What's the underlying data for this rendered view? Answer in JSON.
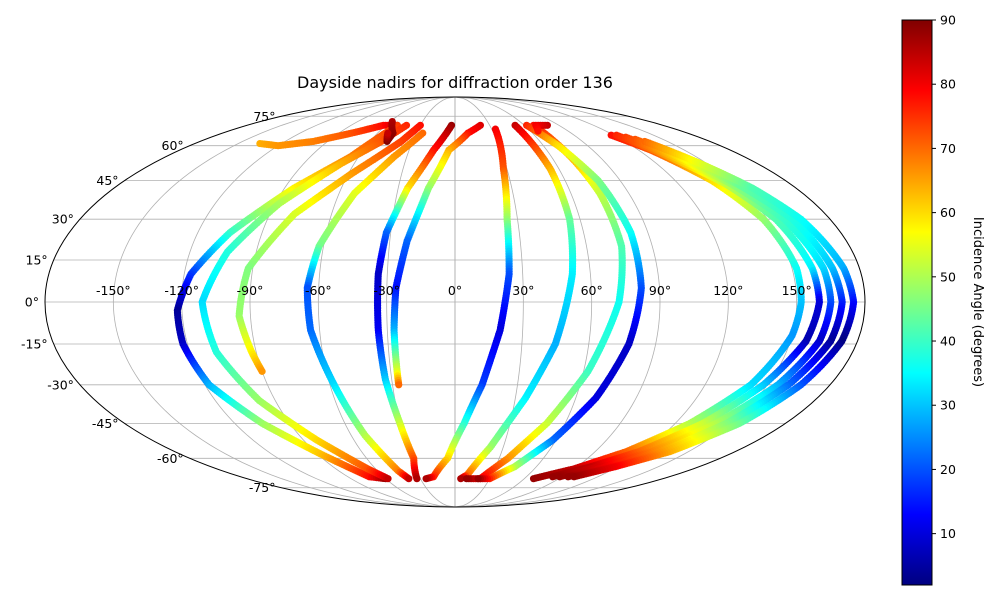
{
  "chart_data": {
    "type": "scatter",
    "projection": "mollweide",
    "title": "Dayside nadirs for diffraction order 136",
    "lon_ticks": [
      -150,
      -120,
      -90,
      -60,
      -30,
      0,
      30,
      60,
      90,
      120,
      150
    ],
    "lat_ticks": [
      -75,
      -60,
      -45,
      -30,
      -15,
      0,
      15,
      30,
      45,
      60,
      75
    ],
    "lon_tick_labels": [
      "-150°",
      "-120°",
      "-90°",
      "-60°",
      "-30°",
      "0°",
      "30°",
      "60°",
      "90°",
      "120°",
      "150°"
    ],
    "lat_tick_labels": [
      "-75°",
      "-60°",
      "-45°",
      "-30°",
      "-15°",
      "0°",
      "15°",
      "30°",
      "45°",
      "60°",
      "75°"
    ],
    "grid": true,
    "colorbar": {
      "label": "Incidence Angle (degrees)",
      "colormap": "jet",
      "range": [
        2,
        90
      ],
      "ticks": [
        10,
        20,
        30,
        40,
        50,
        60,
        70,
        80,
        90
      ],
      "tick_labels": [
        "10",
        "20",
        "30",
        "40",
        "50",
        "60",
        "70",
        "80",
        "90"
      ]
    },
    "tracks": [
      {
        "points": [
          [
            -135,
            61
          ],
          [
            -120,
            60
          ],
          [
            -100,
            62
          ],
          [
            -80,
            66
          ],
          [
            -62,
            70
          ],
          [
            -50,
            70
          ]
        ],
        "incidence": [
          64,
          66,
          68,
          72,
          78,
          84
        ]
      },
      {
        "points": [
          [
            -50,
            70
          ],
          [
            -65,
            55
          ],
          [
            -85,
            42
          ],
          [
            -105,
            25
          ],
          [
            -117,
            10
          ],
          [
            -122,
            -3
          ],
          [
            -122,
            -15
          ],
          [
            -118,
            -30
          ],
          [
            -105,
            -45
          ],
          [
            -88,
            -58
          ],
          [
            -72,
            -69
          ],
          [
            -60,
            -70
          ]
        ],
        "incidence": [
          74,
          68,
          58,
          40,
          18,
          4,
          8,
          28,
          48,
          62,
          78,
          88
        ]
      },
      {
        "points": [
          [
            -42,
            70
          ],
          [
            -52,
            62
          ],
          [
            -68,
            52
          ],
          [
            -88,
            36
          ],
          [
            -103,
            18
          ],
          [
            -111,
            0
          ],
          [
            -108,
            -18
          ],
          [
            -98,
            -36
          ],
          [
            -82,
            -52
          ],
          [
            -66,
            -65
          ],
          [
            -58,
            -70
          ]
        ],
        "incidence": [
          76,
          72,
          64,
          50,
          38,
          32,
          38,
          48,
          60,
          72,
          84
        ]
      },
      {
        "points": [
          [
            -30,
            70
          ],
          [
            -38,
            62
          ],
          [
            -58,
            48
          ],
          [
            -78,
            32
          ],
          [
            -92,
            12
          ],
          [
            -95,
            -5
          ],
          [
            -92,
            -18
          ],
          [
            -90,
            -25
          ]
        ],
        "incidence": [
          78,
          74,
          66,
          54,
          46,
          48,
          58,
          66
        ]
      },
      {
        "points": [
          [
            -58,
            72
          ],
          [
            -48,
            66
          ],
          [
            -48,
            62
          ],
          [
            -52,
            66
          ]
        ],
        "incidence": [
          86,
          88,
          90,
          84
        ]
      },
      {
        "points": [
          [
            -25,
            66
          ],
          [
            -38,
            55
          ],
          [
            -52,
            40
          ],
          [
            -62,
            20
          ],
          [
            -65,
            5
          ],
          [
            -64,
            -10
          ],
          [
            -58,
            -30
          ],
          [
            -52,
            -50
          ],
          [
            -44,
            -66
          ],
          [
            -40,
            -70
          ]
        ],
        "incidence": [
          70,
          66,
          55,
          45,
          20,
          22,
          32,
          50,
          68,
          84
        ]
      },
      {
        "points": [
          [
            -3,
            70
          ],
          [
            -14,
            58
          ],
          [
            -25,
            42
          ],
          [
            -32,
            25
          ],
          [
            -34,
            10
          ],
          [
            -34,
            -10
          ],
          [
            -33,
            -28
          ],
          [
            -30,
            -45
          ],
          [
            -28,
            -60
          ],
          [
            -33,
            -70
          ]
        ],
        "incidence": [
          88,
          78,
          60,
          22,
          8,
          12,
          30,
          52,
          72,
          86
        ]
      },
      {
        "points": [
          [
            22,
            70
          ],
          [
            10,
            66
          ],
          [
            -4,
            58
          ],
          [
            -14,
            42
          ],
          [
            -22,
            22
          ],
          [
            -26,
            5
          ],
          [
            -27,
            -10
          ],
          [
            -27,
            -25
          ],
          [
            -27,
            -30
          ]
        ],
        "incidence": [
          82,
          78,
          64,
          48,
          22,
          14,
          28,
          54,
          70
        ]
      },
      {
        "points": [
          [
            33,
            68
          ],
          [
            28,
            50
          ],
          [
            25,
            30
          ],
          [
            24,
            10
          ],
          [
            20,
            -10
          ],
          [
            13,
            -30
          ],
          [
            5,
            -45
          ],
          [
            -5,
            -60
          ],
          [
            -18,
            -69
          ],
          [
            -25,
            -70
          ]
        ],
        "incidence": [
          80,
          72,
          48,
          20,
          10,
          18,
          38,
          60,
          76,
          86
        ]
      },
      {
        "points": [
          [
            52,
            70
          ],
          [
            55,
            50
          ],
          [
            55,
            30
          ],
          [
            52,
            10
          ],
          [
            45,
            -15
          ],
          [
            35,
            -35
          ],
          [
            22,
            -55
          ],
          [
            10,
            -68
          ],
          [
            5,
            -70
          ]
        ],
        "incidence": [
          84,
          64,
          44,
          34,
          28,
          34,
          48,
          70,
          86
        ]
      },
      {
        "points": [
          [
            68,
            70
          ],
          [
            72,
            55
          ],
          [
            75,
            40
          ],
          [
            76,
            20
          ],
          [
            72,
            0
          ],
          [
            62,
            -25
          ],
          [
            50,
            -45
          ],
          [
            36,
            -60
          ],
          [
            22,
            -70
          ],
          [
            10,
            -70
          ]
        ],
        "incidence": [
          78,
          64,
          52,
          42,
          36,
          40,
          52,
          66,
          80,
          88
        ]
      },
      {
        "points": [
          [
            62,
            70
          ],
          [
            70,
            60
          ],
          [
            78,
            45
          ],
          [
            82,
            25
          ],
          [
            82,
            5
          ],
          [
            78,
            -15
          ],
          [
            70,
            -35
          ],
          [
            58,
            -52
          ],
          [
            44,
            -64
          ],
          [
            30,
            -70
          ],
          [
            20,
            -70
          ]
        ],
        "incidence": [
          76,
          60,
          46,
          36,
          20,
          8,
          10,
          22,
          50,
          76,
          88
        ]
      },
      {
        "points": [
          [
            80,
            70
          ],
          [
            70,
            70
          ],
          [
            66,
            67
          ]
        ],
        "incidence": [
          84,
          80,
          78
        ]
      },
      {
        "points": [
          [
            118,
            65
          ],
          [
            128,
            58
          ],
          [
            140,
            45
          ],
          [
            148,
            30
          ],
          [
            152,
            12
          ],
          [
            152,
            0
          ],
          [
            150,
            -12
          ],
          [
            142,
            -30
          ],
          [
            128,
            -45
          ],
          [
            110,
            -57
          ],
          [
            90,
            -65
          ],
          [
            68,
            -70
          ]
        ],
        "incidence": [
          78,
          72,
          60,
          48,
          36,
          30,
          26,
          32,
          50,
          70,
          84,
          88
        ]
      },
      {
        "points": [
          [
            122,
            65
          ],
          [
            132,
            56
          ],
          [
            145,
            44
          ],
          [
            154,
            30
          ],
          [
            159,
            12
          ],
          [
            160,
            0
          ],
          [
            157,
            -14
          ],
          [
            148,
            -30
          ],
          [
            135,
            -45
          ],
          [
            118,
            -57
          ],
          [
            100,
            -64
          ],
          [
            82,
            -69
          ]
        ],
        "incidence": [
          76,
          66,
          52,
          42,
          34,
          10,
          6,
          30,
          52,
          70,
          84,
          88
        ]
      },
      {
        "points": [
          [
            126,
            64
          ],
          [
            136,
            55
          ],
          [
            148,
            44
          ],
          [
            158,
            30
          ],
          [
            164,
            12
          ],
          [
            165,
            0
          ],
          [
            163,
            -14
          ],
          [
            155,
            -30
          ],
          [
            142,
            -45
          ],
          [
            126,
            -57
          ],
          [
            106,
            -64
          ],
          [
            88,
            -69
          ]
        ],
        "incidence": [
          74,
          62,
          48,
          40,
          32,
          20,
          8,
          28,
          50,
          68,
          82,
          88
        ]
      },
      {
        "points": [
          [
            130,
            63
          ],
          [
            140,
            54
          ],
          [
            152,
            43
          ],
          [
            162,
            30
          ],
          [
            168,
            12
          ],
          [
            170,
            0
          ],
          [
            168,
            -14
          ],
          [
            160,
            -30
          ],
          [
            148,
            -45
          ],
          [
            132,
            -57
          ],
          [
            112,
            -64
          ],
          [
            95,
            -69
          ]
        ],
        "incidence": [
          72,
          58,
          44,
          38,
          30,
          16,
          4,
          22,
          46,
          66,
          80,
          88
        ]
      },
      {
        "points": [
          [
            134,
            62
          ],
          [
            145,
            53
          ],
          [
            157,
            42
          ],
          [
            166,
            30
          ],
          [
            173,
            12
          ],
          [
            175,
            0
          ],
          [
            173,
            -14
          ],
          [
            166,
            -30
          ],
          [
            155,
            -45
          ],
          [
            138,
            -57
          ],
          [
            118,
            -64
          ],
          [
            100,
            -69
          ]
        ],
        "incidence": [
          70,
          56,
          42,
          36,
          28,
          14,
          2,
          20,
          44,
          64,
          80,
          88
        ]
      }
    ]
  }
}
